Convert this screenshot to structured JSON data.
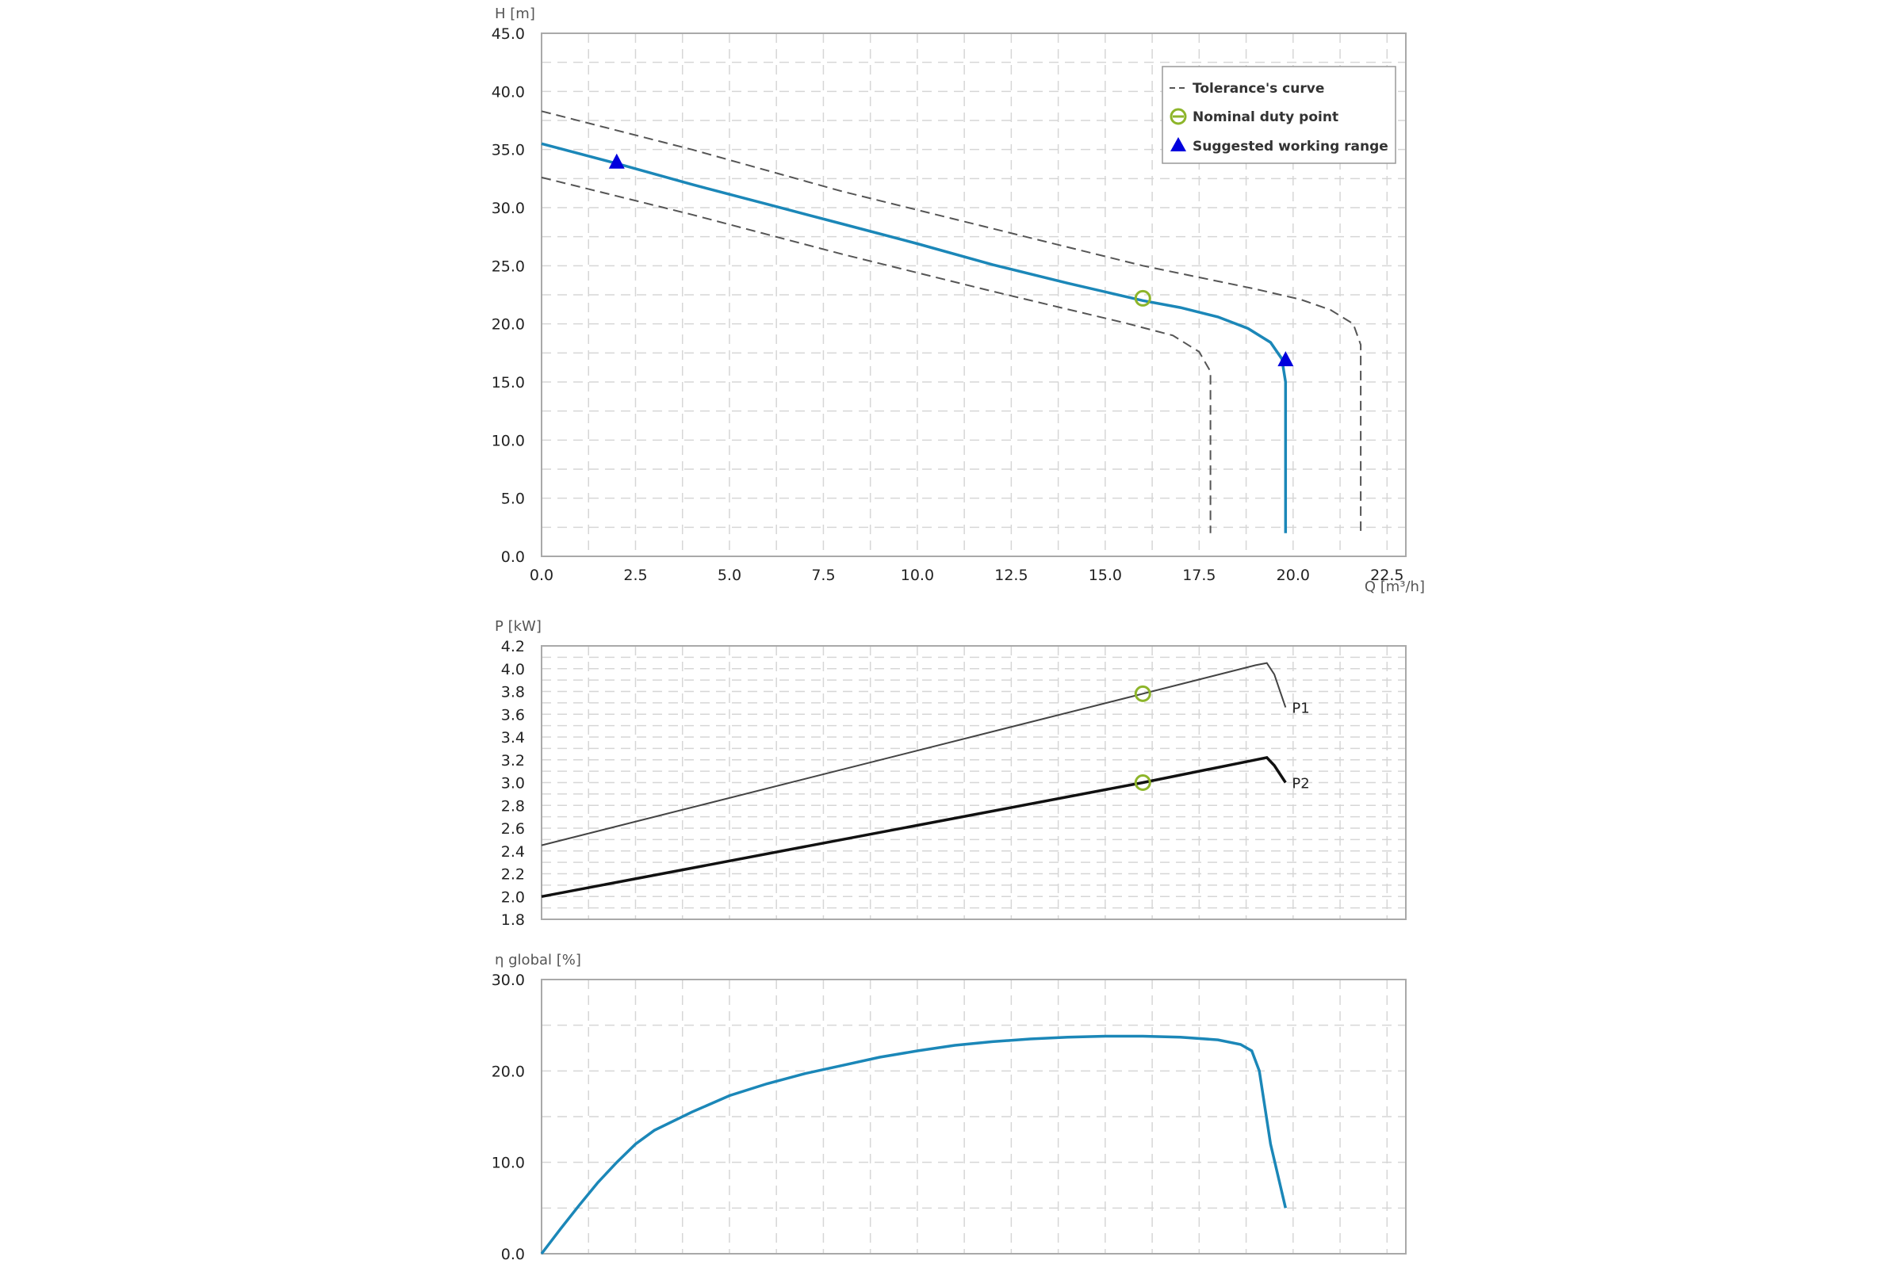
{
  "colors": {
    "blue_curve": "#1b87b8",
    "tolerance": "#555555",
    "duty_point": "#8db52a",
    "range_marker": "#0000dd",
    "grid": "#d6d6d6",
    "frame": "#a9a9a9",
    "p1": "#444444",
    "p2": "#111111"
  },
  "legend": {
    "tolerance_label": "Tolerance's curve",
    "duty_label": "Nominal duty point",
    "range_label": "Suggested working range"
  },
  "chart_data": [
    {
      "type": "line",
      "id": "head",
      "ylabel": "H [m]",
      "xlabel": "Q [m³/h]",
      "xlim": [
        0,
        23
      ],
      "ylim": [
        0,
        45
      ],
      "x_ticks": [
        "0.0",
        "2.5",
        "5.0",
        "7.5",
        "10.0",
        "12.5",
        "15.0",
        "17.5",
        "20.0",
        "22.5"
      ],
      "y_ticks": [
        "0.0",
        "5.0",
        "10.0",
        "15.0",
        "20.0",
        "25.0",
        "30.0",
        "35.0",
        "40.0",
        "45.0"
      ],
      "grid": true,
      "legend_position": "top-right",
      "series": [
        {
          "role": "curve",
          "points": [
            [
              0,
              35.5
            ],
            [
              2,
              33.8
            ],
            [
              4,
              32.0
            ],
            [
              6,
              30.3
            ],
            [
              8,
              28.6
            ],
            [
              10,
              26.9
            ],
            [
              12,
              25.1
            ],
            [
              14,
              23.5
            ],
            [
              16,
              22.0
            ],
            [
              17,
              21.4
            ],
            [
              18,
              20.6
            ],
            [
              18.8,
              19.6
            ],
            [
              19.4,
              18.4
            ],
            [
              19.7,
              17.0
            ],
            [
              19.8,
              15.0
            ],
            [
              19.8,
              2.0
            ]
          ]
        },
        {
          "role": "tolerance",
          "points": [
            [
              0,
              38.3
            ],
            [
              4,
              35.0
            ],
            [
              8,
              31.4
            ],
            [
              12,
              28.2
            ],
            [
              16,
              25.0
            ],
            [
              19,
              23.0
            ],
            [
              20.2,
              22.1
            ],
            [
              21.0,
              21.2
            ],
            [
              21.6,
              20.0
            ],
            [
              21.8,
              18.2
            ],
            [
              21.8,
              2.0
            ]
          ]
        },
        {
          "role": "tolerance",
          "points": [
            [
              0,
              32.6
            ],
            [
              4,
              29.4
            ],
            [
              8,
              26.0
            ],
            [
              12,
              22.8
            ],
            [
              15.5,
              20.1
            ],
            [
              16.8,
              19.0
            ],
            [
              17.5,
              17.6
            ],
            [
              17.8,
              15.9
            ],
            [
              17.8,
              2.0
            ]
          ]
        }
      ],
      "duty_point": [
        16.0,
        22.2
      ],
      "working_range": [
        [
          2.0,
          33.9
        ],
        [
          19.8,
          16.9
        ]
      ]
    },
    {
      "type": "line",
      "id": "power",
      "ylabel": "P [kW]",
      "xlim": [
        0,
        23
      ],
      "ylim": [
        1.8,
        4.2
      ],
      "y_ticks": [
        "1.8",
        "2.0",
        "2.2",
        "2.4",
        "2.6",
        "2.8",
        "3.0",
        "3.2",
        "3.4",
        "3.6",
        "3.8",
        "4.0",
        "4.2"
      ],
      "grid": true,
      "series": [
        {
          "name": "P1",
          "points": [
            [
              0,
              2.45
            ],
            [
              16,
              3.78
            ],
            [
              19.0,
              4.03
            ],
            [
              19.3,
              4.05
            ],
            [
              19.5,
              3.95
            ],
            [
              19.8,
              3.66
            ]
          ]
        },
        {
          "name": "P2",
          "points": [
            [
              0,
              2.0
            ],
            [
              16,
              3.0
            ],
            [
              19.0,
              3.2
            ],
            [
              19.3,
              3.22
            ],
            [
              19.5,
              3.15
            ],
            [
              19.8,
              3.0
            ]
          ]
        }
      ],
      "duty_points": [
        [
          16.0,
          3.78
        ],
        [
          16.0,
          3.0
        ]
      ]
    },
    {
      "type": "line",
      "id": "efficiency",
      "ylabel": "η global [%]",
      "xlim": [
        0,
        23
      ],
      "ylim": [
        0,
        30
      ],
      "y_ticks": [
        "0.0",
        "10.0",
        "20.0",
        "30.0"
      ],
      "grid": true,
      "series": [
        {
          "role": "curve",
          "points": [
            [
              0,
              0.0
            ],
            [
              0.5,
              2.7
            ],
            [
              1,
              5.3
            ],
            [
              1.5,
              7.8
            ],
            [
              2,
              10.0
            ],
            [
              2.5,
              12.0
            ],
            [
              3,
              13.5
            ],
            [
              4,
              15.5
            ],
            [
              5,
              17.3
            ],
            [
              6,
              18.6
            ],
            [
              7,
              19.7
            ],
            [
              8,
              20.6
            ],
            [
              9,
              21.5
            ],
            [
              10,
              22.2
            ],
            [
              11,
              22.8
            ],
            [
              12,
              23.2
            ],
            [
              13,
              23.5
            ],
            [
              14,
              23.7
            ],
            [
              15,
              23.8
            ],
            [
              16,
              23.8
            ],
            [
              17,
              23.7
            ],
            [
              18,
              23.4
            ],
            [
              18.6,
              22.9
            ],
            [
              18.9,
              22.2
            ],
            [
              19.1,
              20.0
            ],
            [
              19.4,
              12.0
            ],
            [
              19.8,
              5.0
            ]
          ]
        }
      ]
    }
  ]
}
